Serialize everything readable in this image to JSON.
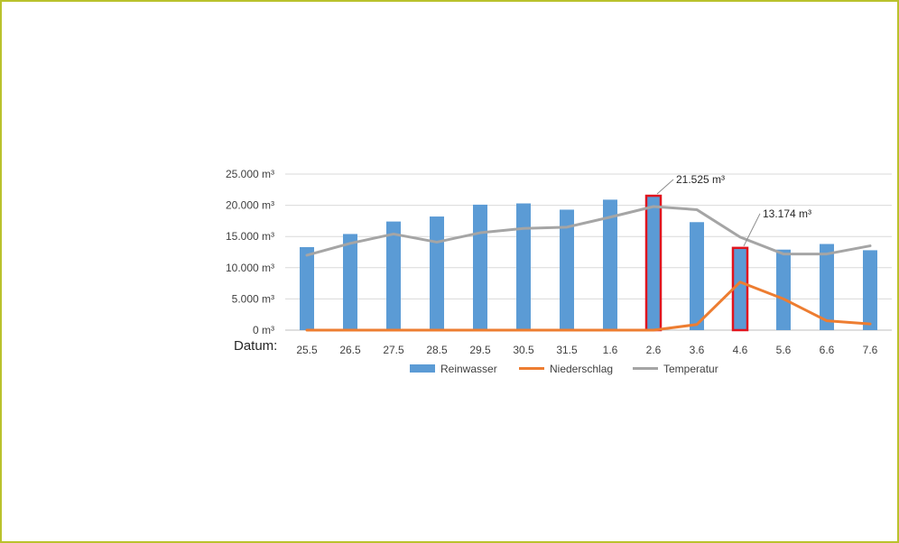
{
  "colors": {
    "frame": "#b9c22c",
    "bars": "#5b9bd5",
    "niederschlag": "#ed7d31",
    "temperatur": "#a5a5a5",
    "highlight": "#e0141e",
    "grid": "#d9d9d9"
  },
  "chart_data": {
    "type": "bar",
    "title": "",
    "xlabel": "Datum:",
    "ylabel": "",
    "categories": [
      "25.5",
      "26.5",
      "27.5",
      "28.5",
      "29.5",
      "30.5",
      "31.5",
      "1.6",
      "2.6",
      "3.6",
      "4.6",
      "5.6",
      "6.6",
      "7.6"
    ],
    "ylim": [
      0,
      25000
    ],
    "y_ticks": [
      0,
      5000,
      10000,
      15000,
      20000,
      25000
    ],
    "y_tick_labels": [
      "0 m³",
      "5.000 m³",
      "10.000 m³",
      "15.000 m³",
      "20.000 m³",
      "25.000 m³"
    ],
    "grid": true,
    "legend_position": "bottom",
    "series": [
      {
        "name": "Reinwasser",
        "kind": "bar",
        "values": [
          13300,
          15400,
          17400,
          18200,
          20100,
          20300,
          19300,
          20900,
          21525,
          17300,
          13174,
          12900,
          13800,
          12800
        ]
      },
      {
        "name": "Niederschlag",
        "kind": "line",
        "values": [
          0,
          0,
          0,
          0,
          0,
          0,
          0,
          0,
          0,
          900,
          7700,
          5000,
          1500,
          1000
        ]
      },
      {
        "name": "Temperatur",
        "kind": "line",
        "values": [
          12000,
          13900,
          15400,
          14100,
          15600,
          16300,
          16500,
          18100,
          19800,
          19300,
          14900,
          12200,
          12200,
          13500
        ]
      }
    ],
    "highlighted": [
      {
        "category": "2.6",
        "label": "21.525 m³"
      },
      {
        "category": "4.6",
        "label": "13.174 m³"
      }
    ]
  }
}
